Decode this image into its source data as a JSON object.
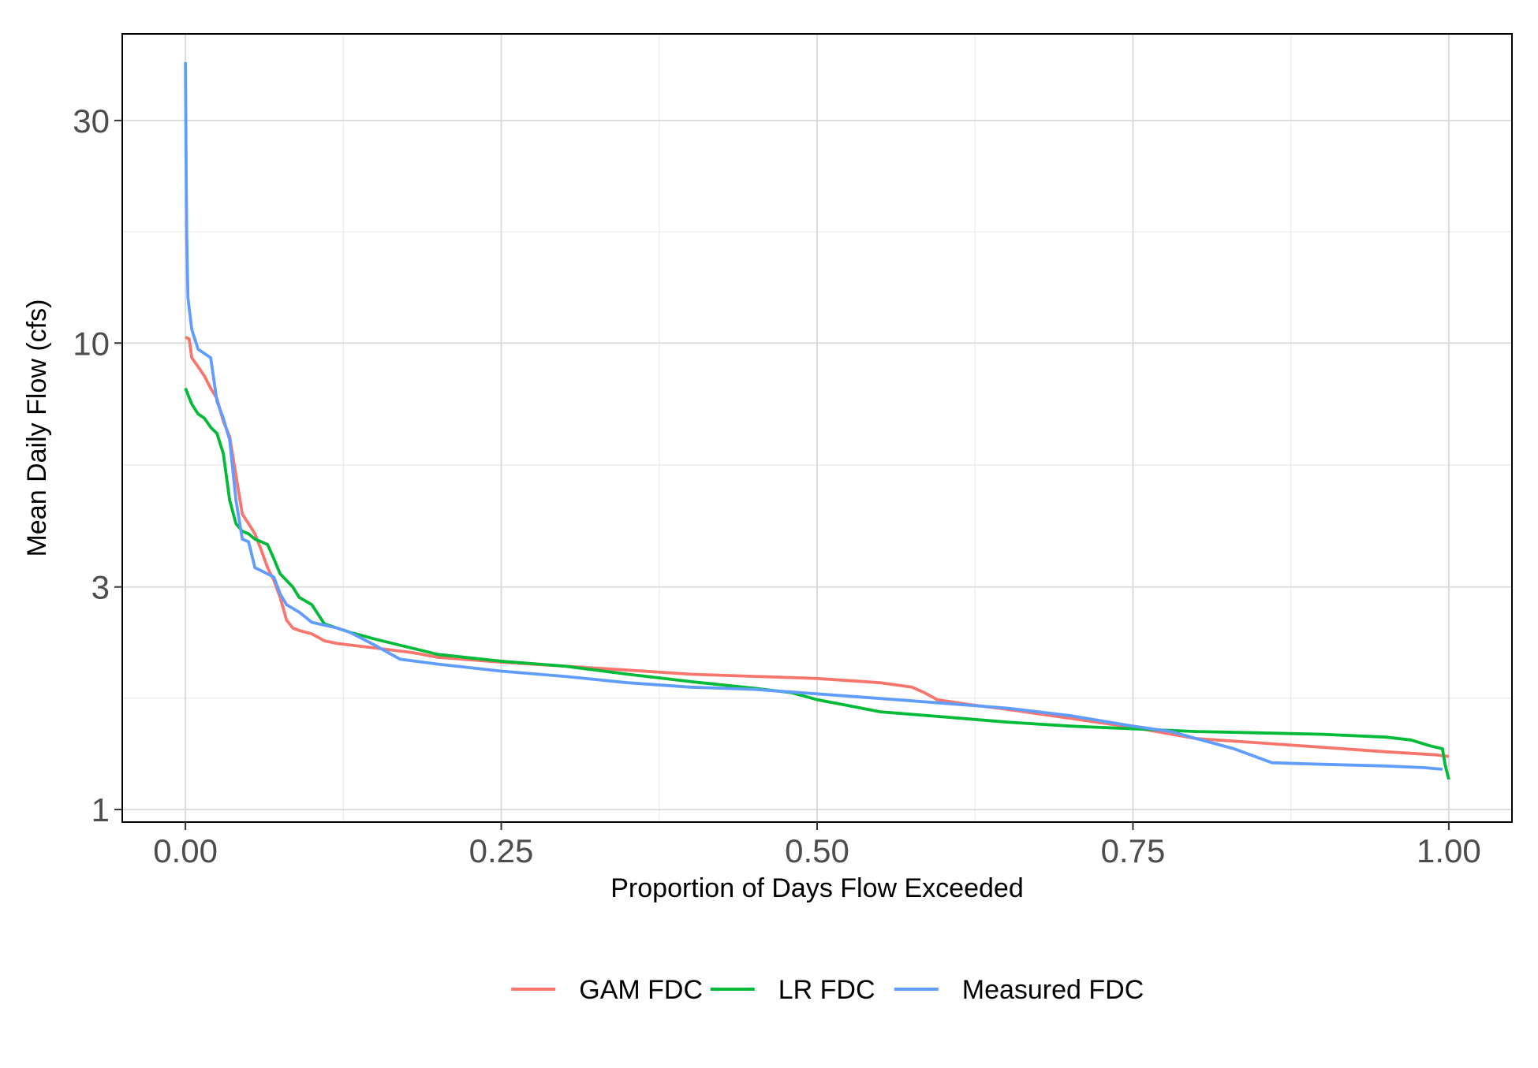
{
  "chart_data": {
    "type": "line",
    "title": "",
    "xlabel": "Proportion of Days Flow Exceeded",
    "ylabel": "Mean Daily Flow (cfs)",
    "xlim": [
      -0.05,
      1.05
    ],
    "ylim": [
      0.94,
      46
    ],
    "yscale": "log",
    "grid": true,
    "legend_position": "bottom",
    "x_ticks": [
      0.0,
      0.25,
      0.5,
      0.75,
      1.0
    ],
    "x_tick_labels": [
      "0.00",
      "0.25",
      "0.50",
      "0.75",
      "1.00"
    ],
    "y_ticks": [
      1,
      3,
      10,
      30
    ],
    "y_tick_labels": [
      "1",
      "3",
      "10",
      "30"
    ],
    "series": [
      {
        "name": "GAM FDC",
        "color": "#F8766D",
        "points": [
          [
            0.0,
            10.3
          ],
          [
            0.003,
            10.2
          ],
          [
            0.005,
            9.3
          ],
          [
            0.01,
            8.9
          ],
          [
            0.015,
            8.5
          ],
          [
            0.02,
            8.0
          ],
          [
            0.025,
            7.6
          ],
          [
            0.03,
            6.8
          ],
          [
            0.035,
            6.3
          ],
          [
            0.04,
            5.2
          ],
          [
            0.045,
            4.3
          ],
          [
            0.05,
            4.1
          ],
          [
            0.055,
            3.9
          ],
          [
            0.06,
            3.6
          ],
          [
            0.065,
            3.3
          ],
          [
            0.07,
            3.1
          ],
          [
            0.075,
            2.85
          ],
          [
            0.08,
            2.55
          ],
          [
            0.085,
            2.45
          ],
          [
            0.09,
            2.42
          ],
          [
            0.1,
            2.38
          ],
          [
            0.11,
            2.3
          ],
          [
            0.12,
            2.27
          ],
          [
            0.15,
            2.22
          ],
          [
            0.18,
            2.17
          ],
          [
            0.2,
            2.12
          ],
          [
            0.25,
            2.07
          ],
          [
            0.3,
            2.03
          ],
          [
            0.35,
            1.99
          ],
          [
            0.4,
            1.95
          ],
          [
            0.45,
            1.93
          ],
          [
            0.5,
            1.91
          ],
          [
            0.55,
            1.87
          ],
          [
            0.575,
            1.83
          ],
          [
            0.585,
            1.78
          ],
          [
            0.595,
            1.72
          ],
          [
            0.62,
            1.68
          ],
          [
            0.65,
            1.64
          ],
          [
            0.7,
            1.57
          ],
          [
            0.75,
            1.5
          ],
          [
            0.8,
            1.42
          ],
          [
            0.85,
            1.39
          ],
          [
            0.9,
            1.36
          ],
          [
            0.95,
            1.33
          ],
          [
            0.99,
            1.31
          ],
          [
            1.0,
            1.3
          ]
        ]
      },
      {
        "name": "LR FDC",
        "color": "#00BA38",
        "points": [
          [
            0.0,
            8.0
          ],
          [
            0.005,
            7.4
          ],
          [
            0.01,
            7.05
          ],
          [
            0.015,
            6.9
          ],
          [
            0.02,
            6.6
          ],
          [
            0.025,
            6.4
          ],
          [
            0.03,
            5.8
          ],
          [
            0.035,
            4.6
          ],
          [
            0.04,
            4.1
          ],
          [
            0.045,
            3.95
          ],
          [
            0.05,
            3.9
          ],
          [
            0.055,
            3.8
          ],
          [
            0.06,
            3.75
          ],
          [
            0.065,
            3.7
          ],
          [
            0.07,
            3.45
          ],
          [
            0.075,
            3.2
          ],
          [
            0.08,
            3.1
          ],
          [
            0.085,
            3.0
          ],
          [
            0.09,
            2.85
          ],
          [
            0.1,
            2.75
          ],
          [
            0.11,
            2.5
          ],
          [
            0.12,
            2.45
          ],
          [
            0.13,
            2.4
          ],
          [
            0.15,
            2.32
          ],
          [
            0.17,
            2.25
          ],
          [
            0.2,
            2.15
          ],
          [
            0.25,
            2.08
          ],
          [
            0.3,
            2.03
          ],
          [
            0.35,
            1.95
          ],
          [
            0.4,
            1.88
          ],
          [
            0.45,
            1.82
          ],
          [
            0.48,
            1.78
          ],
          [
            0.5,
            1.72
          ],
          [
            0.52,
            1.68
          ],
          [
            0.55,
            1.62
          ],
          [
            0.6,
            1.58
          ],
          [
            0.65,
            1.54
          ],
          [
            0.7,
            1.51
          ],
          [
            0.75,
            1.49
          ],
          [
            0.8,
            1.47
          ],
          [
            0.85,
            1.46
          ],
          [
            0.9,
            1.45
          ],
          [
            0.95,
            1.43
          ],
          [
            0.97,
            1.41
          ],
          [
            0.985,
            1.37
          ],
          [
            0.995,
            1.35
          ],
          [
            0.997,
            1.25
          ],
          [
            1.0,
            1.16
          ]
        ]
      },
      {
        "name": "Measured FDC",
        "color": "#619CFF",
        "points": [
          [
            0.0,
            40.0
          ],
          [
            0.0005,
            25.0
          ],
          [
            0.001,
            17.0
          ],
          [
            0.002,
            12.5
          ],
          [
            0.005,
            10.7
          ],
          [
            0.01,
            9.7
          ],
          [
            0.015,
            9.5
          ],
          [
            0.02,
            9.3
          ],
          [
            0.025,
            7.5
          ],
          [
            0.03,
            6.9
          ],
          [
            0.035,
            6.2
          ],
          [
            0.04,
            4.6
          ],
          [
            0.045,
            3.8
          ],
          [
            0.05,
            3.75
          ],
          [
            0.055,
            3.3
          ],
          [
            0.06,
            3.25
          ],
          [
            0.065,
            3.2
          ],
          [
            0.07,
            3.15
          ],
          [
            0.075,
            2.9
          ],
          [
            0.08,
            2.75
          ],
          [
            0.09,
            2.65
          ],
          [
            0.1,
            2.52
          ],
          [
            0.12,
            2.45
          ],
          [
            0.13,
            2.4
          ],
          [
            0.15,
            2.25
          ],
          [
            0.17,
            2.1
          ],
          [
            0.2,
            2.05
          ],
          [
            0.25,
            1.98
          ],
          [
            0.3,
            1.93
          ],
          [
            0.35,
            1.87
          ],
          [
            0.4,
            1.83
          ],
          [
            0.45,
            1.81
          ],
          [
            0.5,
            1.77
          ],
          [
            0.55,
            1.73
          ],
          [
            0.6,
            1.69
          ],
          [
            0.65,
            1.65
          ],
          [
            0.7,
            1.59
          ],
          [
            0.75,
            1.51
          ],
          [
            0.78,
            1.47
          ],
          [
            0.8,
            1.42
          ],
          [
            0.83,
            1.35
          ],
          [
            0.86,
            1.26
          ],
          [
            0.9,
            1.25
          ],
          [
            0.95,
            1.24
          ],
          [
            0.98,
            1.23
          ],
          [
            0.995,
            1.22
          ]
        ]
      }
    ]
  }
}
